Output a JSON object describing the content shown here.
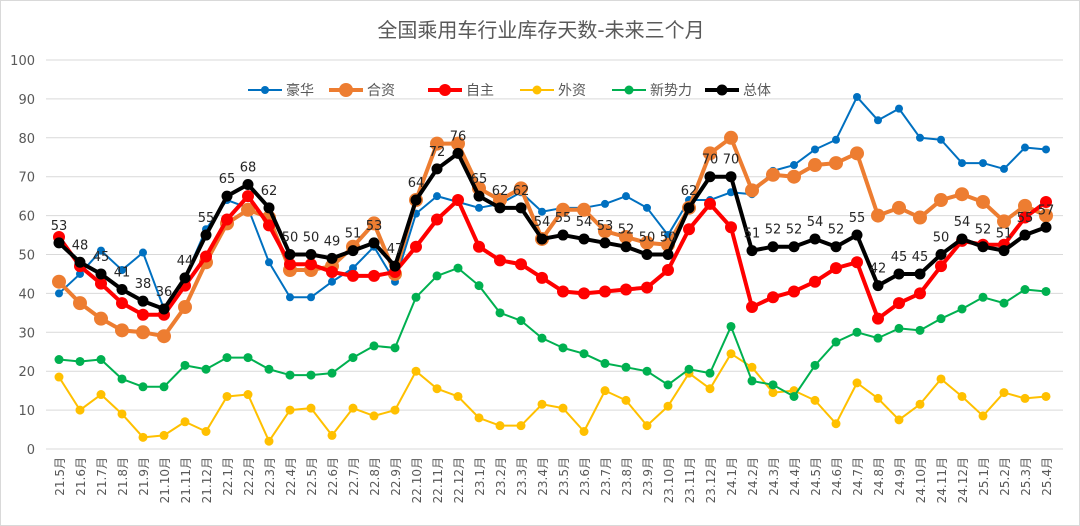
{
  "chart_data": {
    "type": "line",
    "title": "全国乘用车行业库存天数-未来三个月",
    "ylim": [
      0,
      100
    ],
    "yticks": [
      0,
      10,
      20,
      30,
      40,
      50,
      60,
      70,
      80,
      90,
      100
    ],
    "grid": true,
    "legend": "top",
    "categories": [
      "21.5月",
      "21.6月",
      "21.7月",
      "21.8月",
      "21.9月",
      "21.10月",
      "21.11月",
      "21.12月",
      "22.1月",
      "22.2月",
      "22.3月",
      "22.4月",
      "22.5月",
      "22.6月",
      "22.7月",
      "22.8月",
      "22.9月",
      "22.10月",
      "22.11月",
      "22.12月",
      "23.1月",
      "23.2月",
      "23.3月",
      "23.4月",
      "23.5月",
      "23.6月",
      "23.7月",
      "23.8月",
      "23.9月",
      "23.10月",
      "23.11月",
      "23.12月",
      "24.1月",
      "24.2月",
      "24.3月",
      "24.4月",
      "24.5月",
      "24.6月",
      "24.7月",
      "24.8月",
      "24.9月",
      "24.10月",
      "24.11月",
      "24.12月",
      "25.1月",
      "25.2月",
      "25.3月",
      "25.4月"
    ],
    "series": [
      {
        "name": "豪华",
        "color": "#0070C0",
        "values": [
          40,
          45,
          51,
          46,
          50.5,
          36,
          44,
          56.5,
          64,
          62,
          48,
          39,
          39,
          43,
          46.5,
          52,
          43,
          60.5,
          65,
          63.5,
          62,
          63,
          66,
          61,
          62,
          62,
          63,
          65,
          62,
          55,
          64,
          64,
          66,
          65.5,
          71.5,
          73,
          77,
          79.5,
          90.5,
          84.5,
          87.5,
          80,
          79.5,
          73.5,
          73.5,
          72,
          77.5,
          77
        ]
      },
      {
        "name": "合资",
        "color": "#ED7D31",
        "values": [
          43,
          37.5,
          33.5,
          30.5,
          30,
          29,
          36.5,
          48,
          58,
          61.5,
          59.5,
          46,
          46,
          47,
          52,
          58,
          45,
          64,
          78.5,
          78.5,
          67,
          64,
          67,
          54,
          61.5,
          61.5,
          56,
          54.5,
          53,
          52.5,
          62,
          76,
          80,
          66.5,
          70.5,
          70,
          73,
          73.5,
          76,
          60,
          62,
          59.5,
          64,
          65.5,
          63.5,
          58.5,
          62.5,
          60
        ]
      },
      {
        "name": "自主",
        "color": "#FF0000",
        "values": [
          54.5,
          47,
          42.5,
          37.5,
          34.5,
          34.5,
          42,
          49.5,
          59,
          65,
          57.5,
          47.5,
          47.5,
          45.5,
          44.5,
          44.5,
          45.5,
          52,
          59,
          64,
          52,
          48.5,
          47.5,
          44,
          40.5,
          40,
          40.5,
          41,
          41.5,
          46,
          56.5,
          63,
          57,
          36.5,
          39,
          40.5,
          43,
          46.5,
          48,
          33.5,
          37.5,
          40,
          47,
          53.5,
          52.5,
          52.5,
          59.5,
          63.5
        ]
      },
      {
        "name": "外资",
        "color": "#FFC000",
        "values": [
          18.5,
          10,
          14,
          9,
          3,
          3.5,
          7,
          4.5,
          13.5,
          14,
          2,
          10,
          10.5,
          3.5,
          10.5,
          8.5,
          10,
          20,
          15.5,
          13.5,
          8,
          6,
          6,
          11.5,
          10.5,
          4.5,
          15,
          12.5,
          6,
          11,
          19.5,
          15.5,
          24.5,
          21,
          14.5,
          15,
          12.5,
          6.5,
          17,
          13,
          7.5,
          11.5,
          18,
          13.5,
          8.5,
          14.5,
          13,
          13.5
        ]
      },
      {
        "name": "新势力",
        "color": "#00B050",
        "values": [
          23,
          22.5,
          23,
          18,
          16,
          16,
          21.5,
          20.5,
          23.5,
          23.5,
          20.5,
          19,
          19,
          19.5,
          23.5,
          26.5,
          26,
          39,
          44.5,
          46.5,
          42,
          35,
          33,
          28.5,
          26,
          24.5,
          22,
          21,
          20,
          16.5,
          20.5,
          19.5,
          31.5,
          17.5,
          16.5,
          13.5,
          21.5,
          27.5,
          30,
          28.5,
          31,
          30.5,
          33.5,
          36,
          39,
          37.5,
          41,
          40.5
        ]
      },
      {
        "name": "总体",
        "color": "#000000",
        "values": [
          53,
          48,
          45,
          41,
          38,
          36,
          44,
          55,
          65,
          68,
          62,
          50,
          50,
          49,
          51,
          53,
          47,
          64,
          72,
          76,
          65,
          62,
          62,
          54,
          55,
          54,
          53,
          52,
          50,
          50,
          62,
          70,
          70,
          51,
          52,
          52,
          54,
          52,
          55,
          42,
          45,
          45,
          50,
          54,
          52,
          51,
          55,
          57
        ],
        "data_labels": true
      }
    ]
  }
}
